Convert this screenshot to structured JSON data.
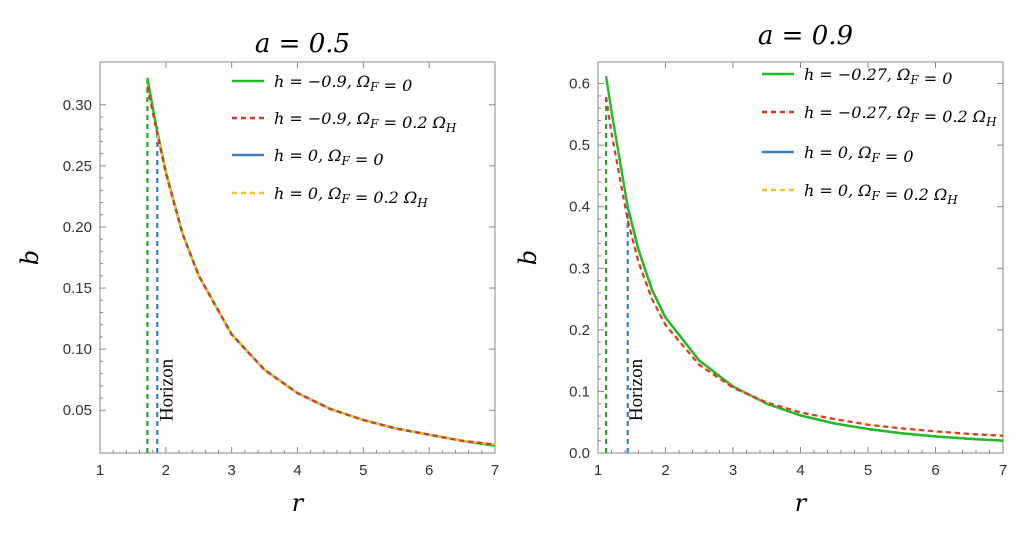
{
  "chart_data": [
    {
      "type": "line",
      "title": "a = 0.5",
      "xlabel": "r",
      "ylabel": "b",
      "xlim": [
        1,
        7
      ],
      "ylim": [
        0.015,
        0.335
      ],
      "xticks": [
        1,
        2,
        3,
        4,
        5,
        6,
        7
      ],
      "xtick_labels": [
        "1",
        "2",
        "3",
        "4",
        "5",
        "6",
        "7"
      ],
      "yticks": [
        0.05,
        0.1,
        0.15,
        0.2,
        0.25,
        0.3
      ],
      "ytick_labels": [
        "0.05",
        "0.10",
        "0.15",
        "0.20",
        "0.25",
        "0.30"
      ],
      "annotation": "Horizon",
      "annotation_x": 2.1,
      "horizons": [
        {
          "x": 1.72,
          "color": "#22aa22",
          "y_top": 0.322
        },
        {
          "x": 1.87,
          "color": "#3a7fc0",
          "y_top": 0.282
        }
      ],
      "series": [
        {
          "name": "h = −0.9, Ω_F = 0",
          "label": "h = −0.9, ΩF = 0",
          "color": "#22bb22",
          "dash": "solid",
          "x": [
            1.72,
            1.8,
            1.87,
            2.0,
            2.25,
            2.5,
            3.0,
            3.5,
            4.0,
            4.5,
            5.0,
            5.5,
            6.0,
            6.5,
            7.0
          ],
          "y": [
            0.322,
            0.298,
            0.278,
            0.245,
            0.195,
            0.16,
            0.112,
            0.083,
            0.064,
            0.051,
            0.042,
            0.035,
            0.03,
            0.025,
            0.021
          ]
        },
        {
          "name": "h = −0.9, Ω_F = 0.2 Ω_H",
          "label": "h = −0.9, ΩF = 0.2 ΩH",
          "color": "#d63a2e",
          "dash": "dashed",
          "x": [
            1.72,
            1.8,
            1.87,
            2.0,
            2.25,
            2.5,
            3.0,
            3.5,
            4.0,
            4.5,
            5.0,
            5.5,
            6.0,
            6.5,
            7.0
          ],
          "y": [
            0.315,
            0.294,
            0.276,
            0.244,
            0.195,
            0.16,
            0.112,
            0.083,
            0.064,
            0.051,
            0.042,
            0.035,
            0.03,
            0.025,
            0.022
          ]
        },
        {
          "name": "h = 0, Ω_F = 0",
          "label": "h = 0, ΩF = 0",
          "color": "#3a7fc0",
          "dash": "solid",
          "x": [
            1.87,
            2.0,
            2.25,
            2.5,
            3.0,
            3.5,
            4.0,
            4.5,
            5.0,
            5.5,
            6.0,
            6.5,
            7.0
          ],
          "y": [
            0.278,
            0.245,
            0.195,
            0.16,
            0.112,
            0.083,
            0.064,
            0.051,
            0.042,
            0.035,
            0.03,
            0.025,
            0.021
          ]
        },
        {
          "name": "h = 0, Ω_F = 0.2 Ω_H",
          "label": "h = 0, ΩF = 0.2 ΩH",
          "color": "#f2c030",
          "dash": "dashed",
          "x": [
            1.87,
            2.0,
            2.25,
            2.5,
            3.0,
            3.5,
            4.0,
            4.5,
            5.0,
            5.5,
            6.0,
            6.5,
            7.0
          ],
          "y": [
            0.276,
            0.244,
            0.195,
            0.16,
            0.112,
            0.083,
            0.064,
            0.051,
            0.042,
            0.035,
            0.03,
            0.025,
            0.022
          ]
        }
      ]
    },
    {
      "type": "line",
      "title": "a = 0.9",
      "xlabel": "r",
      "ylabel": "b",
      "xlim": [
        1,
        7
      ],
      "ylim": [
        0.0,
        0.635
      ],
      "xticks": [
        1,
        2,
        3,
        4,
        5,
        6,
        7
      ],
      "xtick_labels": [
        "1",
        "2",
        "3",
        "4",
        "5",
        "6",
        "7"
      ],
      "yticks": [
        0.0,
        0.1,
        0.2,
        0.3,
        0.4,
        0.5,
        0.6
      ],
      "ytick_labels": [
        "0.0",
        "0.1",
        "0.2",
        "0.3",
        "0.4",
        "0.5",
        "0.6"
      ],
      "annotation": "Horizon",
      "annotation_x": 1.65,
      "horizons": [
        {
          "x": 1.12,
          "color": "#22aa22",
          "y_top": 0.58
        },
        {
          "x": 1.44,
          "color": "#3a7fc0",
          "y_top": 0.4
        }
      ],
      "series": [
        {
          "name": "h = −0.27, Ω_F = 0",
          "label": "h = −0.27, ΩF = 0",
          "color": "#22bb22",
          "dash": "solid",
          "x": [
            1.12,
            1.2,
            1.3,
            1.44,
            1.6,
            1.8,
            2.0,
            2.5,
            3.0,
            3.5,
            4.0,
            4.5,
            5.0,
            5.5,
            6.0,
            6.5,
            7.0
          ],
          "y": [
            0.612,
            0.555,
            0.49,
            0.4,
            0.33,
            0.265,
            0.22,
            0.15,
            0.108,
            0.08,
            0.061,
            0.048,
            0.039,
            0.032,
            0.027,
            0.023,
            0.02
          ]
        },
        {
          "name": "h = −0.27, Ω_F = 0.2 Ω_H",
          "label": "h = −0.27, ΩF = 0.2 ΩH",
          "color": "#d63a2e",
          "dash": "dashed",
          "x": [
            1.12,
            1.2,
            1.3,
            1.44,
            1.6,
            1.8,
            2.0,
            2.5,
            3.0,
            3.5,
            4.0,
            4.5,
            5.0,
            5.5,
            6.0,
            6.5,
            7.0
          ],
          "y": [
            0.578,
            0.52,
            0.46,
            0.378,
            0.31,
            0.25,
            0.208,
            0.143,
            0.106,
            0.082,
            0.066,
            0.055,
            0.046,
            0.04,
            0.035,
            0.031,
            0.028
          ]
        },
        {
          "name": "h = 0, Ω_F = 0",
          "label": "h = 0, ΩF = 0",
          "color": "#3a7fc0",
          "dash": "solid",
          "x": [
            1.44,
            1.6,
            1.8,
            2.0,
            2.5,
            3.0,
            3.5,
            4.0,
            4.5,
            5.0,
            5.5,
            6.0,
            6.5,
            7.0
          ],
          "y": [
            0.4,
            0.33,
            0.265,
            0.22,
            0.15,
            0.108,
            0.08,
            0.061,
            0.048,
            0.039,
            0.032,
            0.027,
            0.023,
            0.02
          ]
        },
        {
          "name": "h = 0, Ω_F = 0.2 Ω_H",
          "label": "h = 0, ΩF = 0.2 ΩH",
          "color": "#f2c030",
          "dash": "dashed",
          "x": [
            1.44,
            1.6,
            1.8,
            2.0,
            2.5,
            3.0,
            3.5,
            4.0,
            4.5,
            5.0,
            5.5,
            6.0,
            6.5,
            7.0
          ],
          "y": [
            0.378,
            0.31,
            0.25,
            0.208,
            0.143,
            0.106,
            0.082,
            0.066,
            0.055,
            0.046,
            0.04,
            0.035,
            0.031,
            0.028
          ]
        }
      ]
    }
  ]
}
